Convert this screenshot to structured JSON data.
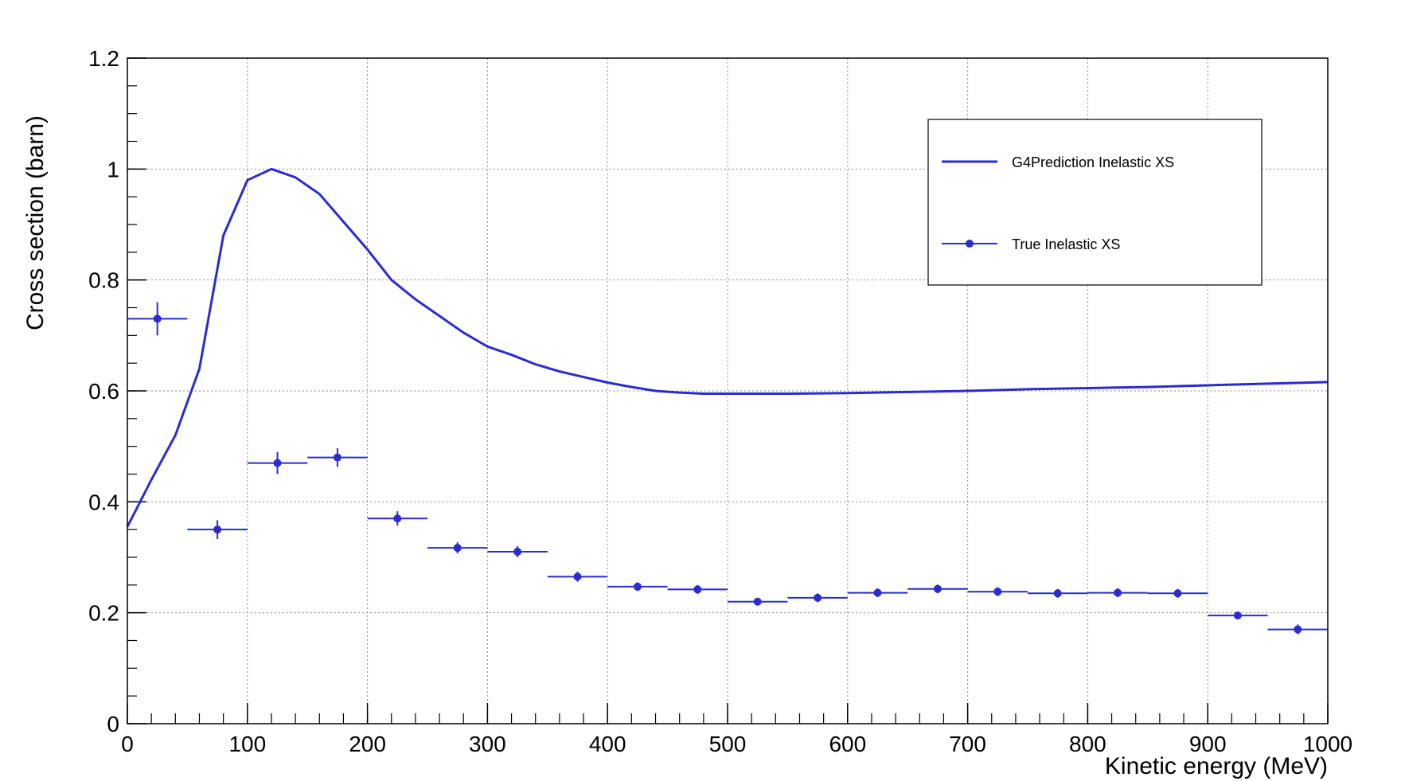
{
  "colors": {
    "series": "#2b2bd0",
    "grid": "#8c8c8c",
    "axis": "#000000"
  },
  "chart_data": {
    "type": "line",
    "title": "",
    "xlabel": "Kinetic energy (MeV)",
    "ylabel": "Cross section (barn)",
    "xlim": [
      0,
      1000
    ],
    "ylim": [
      0,
      1.2
    ],
    "grid": true,
    "legend_position": "top-right",
    "x_ticks": [
      "0",
      "100",
      "200",
      "300",
      "400",
      "500",
      "600",
      "700",
      "800",
      "900",
      "1000"
    ],
    "y_ticks": [
      "0",
      "0.2",
      "0.4",
      "0.6",
      "0.8",
      "1",
      "1.2"
    ],
    "series": [
      {
        "name": "G4Prediction Inelastic XS",
        "style": "line",
        "x": [
          0,
          20,
          40,
          60,
          80,
          100,
          120,
          140,
          160,
          180,
          200,
          220,
          240,
          260,
          280,
          300,
          320,
          340,
          360,
          380,
          400,
          420,
          440,
          460,
          480,
          500,
          550,
          600,
          650,
          700,
          750,
          800,
          850,
          900,
          950,
          1000
        ],
        "y": [
          0.355,
          0.44,
          0.52,
          0.64,
          0.88,
          0.98,
          1.0,
          0.985,
          0.955,
          0.905,
          0.855,
          0.8,
          0.765,
          0.735,
          0.705,
          0.68,
          0.665,
          0.648,
          0.635,
          0.625,
          0.615,
          0.607,
          0.6,
          0.597,
          0.595,
          0.595,
          0.595,
          0.596,
          0.598,
          0.6,
          0.603,
          0.605,
          0.607,
          0.61,
          0.613,
          0.616
        ]
      },
      {
        "name": "True Inelastic XS",
        "style": "points-with-errors",
        "x": [
          25,
          75,
          125,
          175,
          225,
          275,
          325,
          375,
          425,
          475,
          525,
          575,
          625,
          675,
          725,
          775,
          825,
          875,
          925,
          975
        ],
        "x_half_width": 25,
        "y": [
          0.73,
          0.35,
          0.47,
          0.48,
          0.37,
          0.317,
          0.31,
          0.265,
          0.247,
          0.242,
          0.22,
          0.227,
          0.236,
          0.243,
          0.238,
          0.235,
          0.236,
          0.235,
          0.195,
          0.17
        ],
        "y_err": [
          0.03,
          0.017,
          0.02,
          0.017,
          0.013,
          0.01,
          0.01,
          0.009,
          0.008,
          0.008,
          0.007,
          0.008,
          0.008,
          0.008,
          0.008,
          0.008,
          0.008,
          0.008,
          0.007,
          0.009
        ]
      }
    ]
  }
}
